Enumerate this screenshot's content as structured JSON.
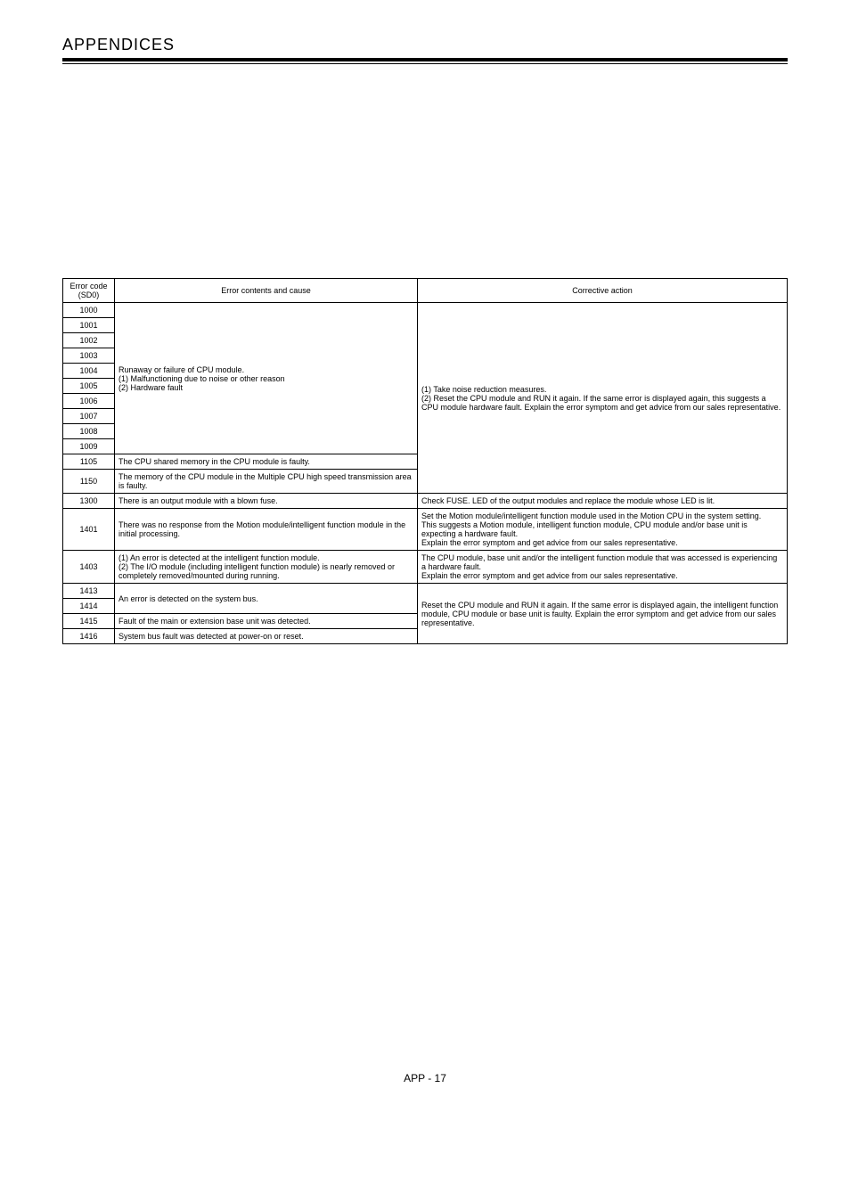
{
  "header": {
    "title": "APPENDICES"
  },
  "table": {
    "head": {
      "code_line1": "Error code",
      "code_line2": "(SD0)",
      "cause": "Error contents and cause",
      "action": "Corrective action"
    },
    "group1": {
      "codes": [
        "1000",
        "1001",
        "1002",
        "1003",
        "1004",
        "1005",
        "1006",
        "1007",
        "1008",
        "1009"
      ],
      "cause_line1": "Runaway or failure of CPU module.",
      "cause_line2": "(1) Malfunctioning due to noise or other reason",
      "cause_line3": "(2) Hardware fault",
      "action_line1": "(1) Take noise reduction measures.",
      "action_line2": "(2) Reset the CPU module and RUN it again. If the same error is displayed again, this suggests a CPU module hardware fault. Explain the error symptom and get advice from our sales representative."
    },
    "row1105": {
      "code": "1105",
      "cause": "The CPU shared memory in the CPU module is faulty."
    },
    "row1150": {
      "code": "1150",
      "cause": "The memory of the CPU module in the Multiple CPU high speed transmission area is faulty."
    },
    "row1300": {
      "code": "1300",
      "cause": "There is an output module with a blown fuse.",
      "action": "Check FUSE. LED of the output modules and replace the module whose LED is lit."
    },
    "row1401": {
      "code": "1401",
      "cause": "There was no response from the Motion module/intelligent function module in the initial processing.",
      "action_l1": "Set the Motion module/intelligent function module used in the Motion CPU in the system setting.",
      "action_l2": "This suggests a Motion module, intelligent function module, CPU module and/or base unit is expecting a hardware fault.",
      "action_l3": "Explain the error symptom and get advice from our sales representative."
    },
    "row1403": {
      "code": "1403",
      "cause_l1": "(1) An error is detected at the intelligent function module.",
      "cause_l2": "(2) The I/O module (including intelligent function module) is nearly removed or completely removed/mounted during running.",
      "action_l1": "The CPU module, base unit and/or the intelligent function module that was accessed is experiencing a hardware fault.",
      "action_l2": "Explain the error symptom and get advice from our sales representative."
    },
    "group1413": {
      "codes": [
        "1413",
        "1414"
      ],
      "cause": "An error is detected on the system bus.",
      "action_l1": "Reset the CPU module and RUN it again. If the same error is displayed again, the intelligent function module, CPU module or base unit is faulty. Explain the error symptom and get advice from our sales representative."
    },
    "row1415": {
      "code": "1415",
      "cause": "Fault of the main or extension base unit was detected."
    },
    "row1416": {
      "code": "1416",
      "cause": "System bus fault was detected at power-on or reset."
    }
  },
  "footer": {
    "text": "APP - 17"
  }
}
